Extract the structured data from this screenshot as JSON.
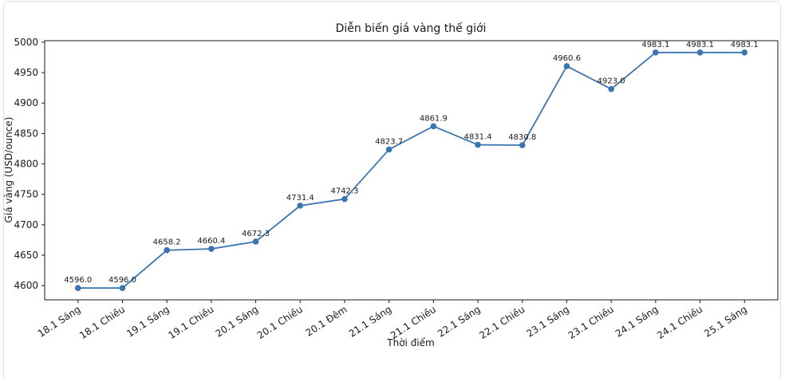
{
  "chart_data": {
    "type": "line",
    "title": "Diễn biến giá vàng thế giới",
    "xlabel": "Thời điểm",
    "ylabel": "Giá vàng (USD/ounce)",
    "categories": [
      "18.1 Sáng",
      "18.1 Chiều",
      "19.1 Sáng",
      "19.1 Chiều",
      "20.1 Sáng",
      "20.1 Chiều",
      "20.1 Đêm",
      "21.1 Sáng",
      "21.1 Chiều",
      "22.1 Sáng",
      "22.1 Chiều",
      "23.1 Sáng",
      "23.1 Chiều",
      "24.1 Sáng",
      "24.1 Chiều",
      "25.1 Sáng"
    ],
    "values": [
      4596.0,
      4596.0,
      4658.2,
      4660.4,
      4672.3,
      4731.4,
      4742.3,
      4823.7,
      4861.9,
      4831.4,
      4830.8,
      4960.6,
      4923.0,
      4983.1,
      4983.1,
      4983.1
    ],
    "point_labels": [
      "4596.0",
      "4596.0",
      "4658.2",
      "4660.4",
      "4672.3",
      "4731.4",
      "4742.3",
      "4823.7",
      "4861.9",
      "4831.4",
      "4830.8",
      "4960.6",
      "4923.0",
      "4983.1",
      "4983.1",
      "4983.1"
    ],
    "yticks": [
      4600,
      4650,
      4700,
      4750,
      4800,
      4850,
      4900,
      4950,
      5000
    ],
    "ylim": [
      4576.6,
      5002.5
    ],
    "grid": false,
    "legend_position": "none",
    "line_color": "#3b75af",
    "marker": "circle",
    "axis_color": "#1a1a1a",
    "label_color": "#1a1a1a"
  }
}
